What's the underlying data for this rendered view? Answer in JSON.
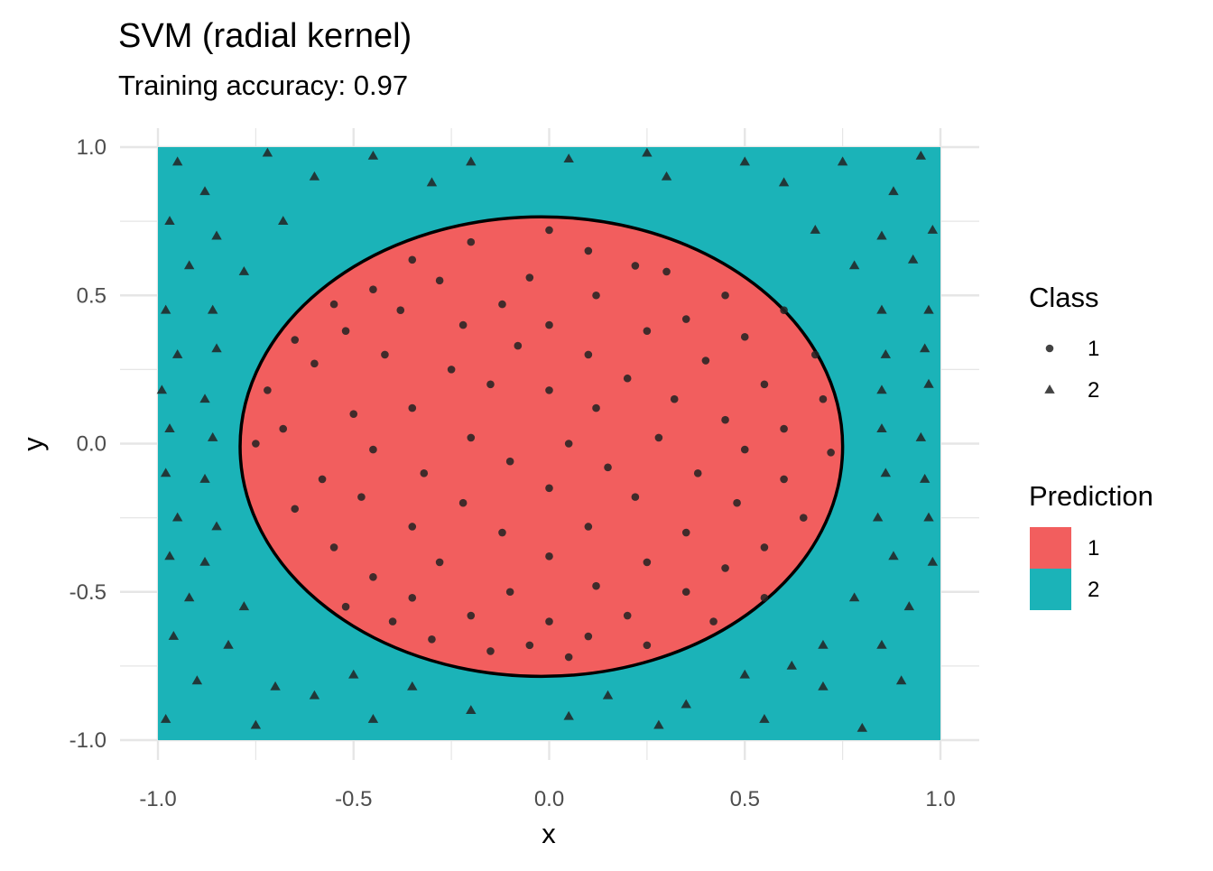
{
  "chart_data": {
    "type": "scatter",
    "title": "SVM (radial kernel)",
    "subtitle": "Training accuracy: 0.97",
    "xlabel": "x",
    "ylabel": "y",
    "xlim": [
      -1.0,
      1.0
    ],
    "ylim": [
      -1.0,
      1.0
    ],
    "x_ticks": [
      "-1.0",
      "-0.5",
      "0.0",
      "0.5",
      "1.0"
    ],
    "y_ticks": [
      "-1.0",
      "-0.5",
      "0.0",
      "0.5",
      "1.0"
    ],
    "grid": true,
    "decision_boundary": {
      "shape": "ellipse",
      "center": [
        -0.02,
        -0.01
      ],
      "x_semi_axis": 0.77,
      "y_semi_axis": 0.775,
      "inside_class": "1",
      "outside_class": "2"
    },
    "legend_position": "right",
    "legends": [
      {
        "title": "Class",
        "entries": [
          {
            "label": "1",
            "shape": "circle"
          },
          {
            "label": "2",
            "shape": "triangle"
          }
        ]
      },
      {
        "title": "Prediction",
        "entries": [
          {
            "label": "1",
            "color": "#F25E5E"
          },
          {
            "label": "2",
            "color": "#1BB3B8"
          }
        ]
      }
    ],
    "colors": {
      "class_1_region": "#F25E5E",
      "class_2_region": "#1BB3B8",
      "points": "#222222",
      "boundary": "#000000",
      "grid": "#e6e6e6"
    },
    "series": [
      {
        "name": "1",
        "marker": "circle",
        "points": [
          [
            0.0,
            0.72
          ],
          [
            0.1,
            0.65
          ],
          [
            -0.2,
            0.68
          ],
          [
            -0.35,
            0.62
          ],
          [
            0.22,
            0.6
          ],
          [
            -0.05,
            0.56
          ],
          [
            0.3,
            0.58
          ],
          [
            -0.28,
            0.55
          ],
          [
            0.45,
            0.5
          ],
          [
            -0.45,
            0.52
          ],
          [
            0.12,
            0.5
          ],
          [
            -0.12,
            0.47
          ],
          [
            0.6,
            0.45
          ],
          [
            -0.55,
            0.47
          ],
          [
            0.35,
            0.42
          ],
          [
            -0.38,
            0.45
          ],
          [
            0.0,
            0.4
          ],
          [
            0.25,
            0.38
          ],
          [
            -0.22,
            0.4
          ],
          [
            0.5,
            0.36
          ],
          [
            -0.52,
            0.38
          ],
          [
            0.68,
            0.3
          ],
          [
            -0.65,
            0.35
          ],
          [
            0.1,
            0.3
          ],
          [
            -0.08,
            0.33
          ],
          [
            0.4,
            0.28
          ],
          [
            -0.42,
            0.3
          ],
          [
            0.2,
            0.22
          ],
          [
            -0.25,
            0.25
          ],
          [
            0.55,
            0.2
          ],
          [
            -0.6,
            0.27
          ],
          [
            0.0,
            0.18
          ],
          [
            0.32,
            0.15
          ],
          [
            -0.15,
            0.2
          ],
          [
            0.7,
            0.15
          ],
          [
            -0.72,
            0.18
          ],
          [
            0.12,
            0.12
          ],
          [
            -0.35,
            0.12
          ],
          [
            0.45,
            0.08
          ],
          [
            -0.5,
            0.1
          ],
          [
            0.6,
            0.05
          ],
          [
            -0.68,
            0.05
          ],
          [
            0.05,
            0.0
          ],
          [
            0.28,
            0.02
          ],
          [
            -0.2,
            0.02
          ],
          [
            0.5,
            -0.02
          ],
          [
            -0.45,
            -0.02
          ],
          [
            0.72,
            -0.03
          ],
          [
            -0.75,
            0.0
          ],
          [
            0.15,
            -0.08
          ],
          [
            -0.1,
            -0.06
          ],
          [
            0.38,
            -0.1
          ],
          [
            -0.32,
            -0.1
          ],
          [
            0.6,
            -0.12
          ],
          [
            -0.58,
            -0.12
          ],
          [
            0.0,
            -0.15
          ],
          [
            0.22,
            -0.18
          ],
          [
            -0.22,
            -0.2
          ],
          [
            0.48,
            -0.2
          ],
          [
            -0.48,
            -0.18
          ],
          [
            0.65,
            -0.25
          ],
          [
            -0.65,
            -0.22
          ],
          [
            0.1,
            -0.28
          ],
          [
            -0.12,
            -0.3
          ],
          [
            0.35,
            -0.3
          ],
          [
            -0.35,
            -0.28
          ],
          [
            0.55,
            -0.35
          ],
          [
            -0.55,
            -0.35
          ],
          [
            0.0,
            -0.38
          ],
          [
            0.25,
            -0.4
          ],
          [
            -0.28,
            -0.4
          ],
          [
            0.45,
            -0.42
          ],
          [
            -0.45,
            -0.45
          ],
          [
            0.12,
            -0.48
          ],
          [
            -0.1,
            -0.5
          ],
          [
            0.35,
            -0.5
          ],
          [
            -0.35,
            -0.52
          ],
          [
            0.55,
            -0.52
          ],
          [
            -0.52,
            -0.55
          ],
          [
            0.2,
            -0.58
          ],
          [
            -0.2,
            -0.58
          ],
          [
            0.0,
            -0.6
          ],
          [
            0.42,
            -0.6
          ],
          [
            -0.4,
            -0.6
          ],
          [
            0.1,
            -0.65
          ],
          [
            -0.15,
            -0.7
          ],
          [
            0.25,
            -0.68
          ],
          [
            -0.3,
            -0.66
          ],
          [
            0.05,
            -0.72
          ],
          [
            -0.05,
            -0.68
          ]
        ]
      },
      {
        "name": "2",
        "marker": "triangle",
        "points": [
          [
            -0.95,
            0.95
          ],
          [
            -0.72,
            0.98
          ],
          [
            -0.45,
            0.97
          ],
          [
            -0.2,
            0.95
          ],
          [
            0.05,
            0.96
          ],
          [
            0.25,
            0.98
          ],
          [
            0.5,
            0.95
          ],
          [
            0.75,
            0.95
          ],
          [
            0.95,
            0.97
          ],
          [
            -0.88,
            0.85
          ],
          [
            -0.6,
            0.9
          ],
          [
            -0.3,
            0.88
          ],
          [
            0.3,
            0.9
          ],
          [
            0.6,
            0.88
          ],
          [
            0.88,
            0.85
          ],
          [
            -0.97,
            0.75
          ],
          [
            -0.85,
            0.7
          ],
          [
            -0.68,
            0.75
          ],
          [
            0.68,
            0.72
          ],
          [
            0.85,
            0.7
          ],
          [
            0.98,
            0.72
          ],
          [
            -0.92,
            0.6
          ],
          [
            -0.78,
            0.58
          ],
          [
            0.78,
            0.6
          ],
          [
            0.93,
            0.62
          ],
          [
            -0.98,
            0.45
          ],
          [
            -0.86,
            0.45
          ],
          [
            0.85,
            0.45
          ],
          [
            0.97,
            0.45
          ],
          [
            -0.95,
            0.3
          ],
          [
            -0.85,
            0.32
          ],
          [
            0.86,
            0.3
          ],
          [
            0.96,
            0.32
          ],
          [
            -0.99,
            0.18
          ],
          [
            -0.88,
            0.15
          ],
          [
            0.85,
            0.18
          ],
          [
            0.97,
            0.2
          ],
          [
            -0.97,
            0.05
          ],
          [
            -0.86,
            0.02
          ],
          [
            0.85,
            0.05
          ],
          [
            0.95,
            0.02
          ],
          [
            -0.98,
            -0.1
          ],
          [
            -0.88,
            -0.12
          ],
          [
            0.86,
            -0.1
          ],
          [
            0.96,
            -0.12
          ],
          [
            -0.95,
            -0.25
          ],
          [
            -0.85,
            -0.28
          ],
          [
            0.84,
            -0.25
          ],
          [
            0.97,
            -0.25
          ],
          [
            -0.97,
            -0.38
          ],
          [
            -0.88,
            -0.4
          ],
          [
            0.88,
            -0.38
          ],
          [
            0.98,
            -0.4
          ],
          [
            -0.92,
            -0.52
          ],
          [
            -0.78,
            -0.55
          ],
          [
            0.78,
            -0.52
          ],
          [
            0.92,
            -0.55
          ],
          [
            -0.96,
            -0.65
          ],
          [
            -0.82,
            -0.68
          ],
          [
            0.7,
            -0.68
          ],
          [
            0.85,
            -0.68
          ],
          [
            -0.9,
            -0.8
          ],
          [
            -0.7,
            -0.82
          ],
          [
            -0.5,
            -0.78
          ],
          [
            0.5,
            -0.78
          ],
          [
            0.7,
            -0.82
          ],
          [
            0.9,
            -0.8
          ],
          [
            -0.98,
            -0.93
          ],
          [
            -0.75,
            -0.95
          ],
          [
            -0.45,
            -0.93
          ],
          [
            -0.2,
            -0.9
          ],
          [
            0.05,
            -0.92
          ],
          [
            0.28,
            -0.95
          ],
          [
            0.55,
            -0.93
          ],
          [
            0.8,
            -0.96
          ],
          [
            -0.6,
            -0.85
          ],
          [
            0.35,
            -0.88
          ],
          [
            -0.35,
            -0.82
          ],
          [
            0.15,
            -0.85
          ],
          [
            0.62,
            -0.75
          ]
        ]
      }
    ]
  }
}
